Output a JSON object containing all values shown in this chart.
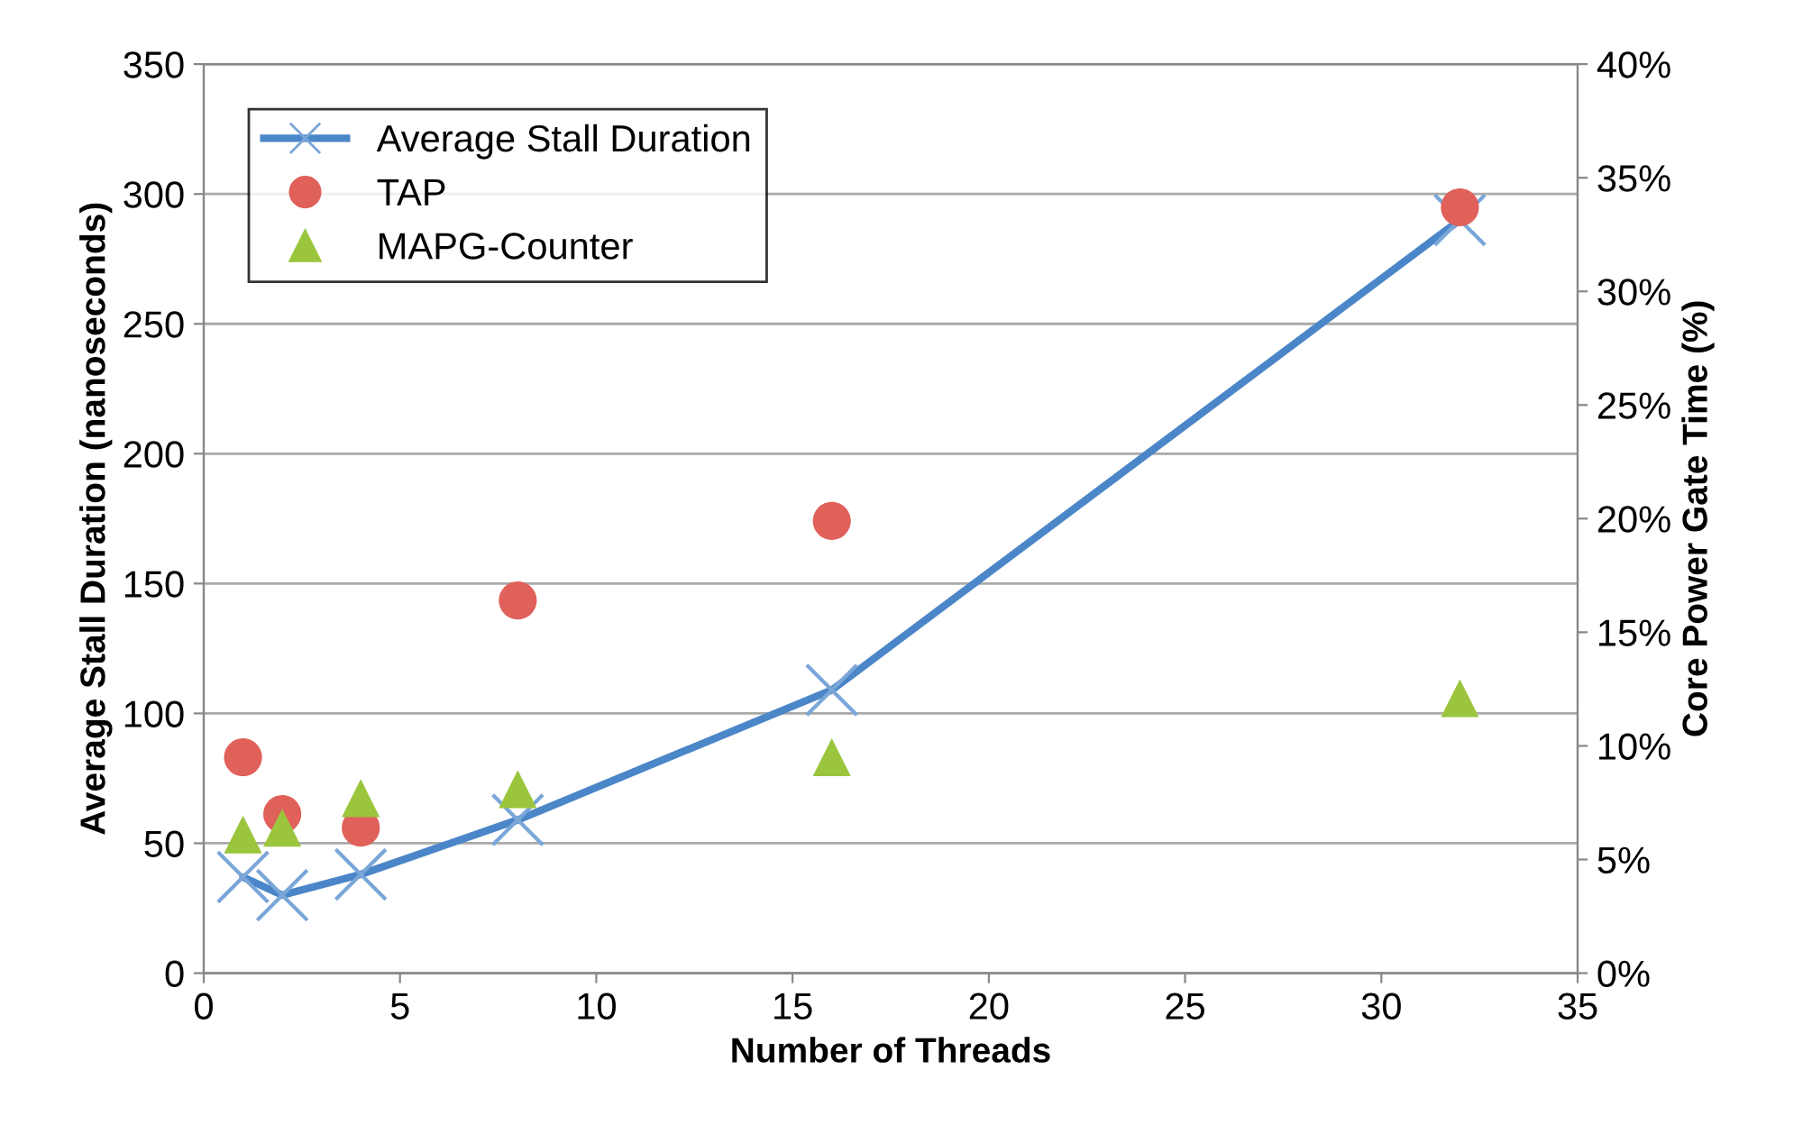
{
  "chart_data": {
    "type": "scatter",
    "xlabel": "Number of Threads",
    "ylabel": "Average Stall Duration (nanoseconds)",
    "y2label": "Core Power Gate Time (%)",
    "xlim": [
      0,
      35
    ],
    "xticks": [
      0,
      5,
      10,
      15,
      20,
      25,
      30,
      35
    ],
    "ylim": [
      0,
      350
    ],
    "yticks": [
      0,
      50,
      100,
      150,
      200,
      250,
      300,
      350
    ],
    "y2lim": [
      0,
      40
    ],
    "y2ticks": [
      {
        "value": 0,
        "label": "0%"
      },
      {
        "value": 5,
        "label": "5%"
      },
      {
        "value": 10,
        "label": "10%"
      },
      {
        "value": 15,
        "label": "15%"
      },
      {
        "value": 20,
        "label": "20%"
      },
      {
        "value": 25,
        "label": "25%"
      },
      {
        "value": 30,
        "label": "30%"
      },
      {
        "value": 35,
        "label": "35%"
      },
      {
        "value": 40,
        "label": "40%"
      }
    ],
    "grid": "y",
    "legend": "top left",
    "series": [
      {
        "name": "Average Stall Duration",
        "type": "line",
        "marker": "cross",
        "color": "#4a86c8",
        "x": [
          1,
          2,
          4,
          8,
          16,
          32
        ],
        "values": [
          37,
          30,
          38,
          59,
          109,
          290
        ]
      },
      {
        "name": "TAP",
        "marker": "circle",
        "color": "#e0605a",
        "axis": "y2",
        "x": [
          1,
          2,
          4,
          8,
          16,
          32
        ],
        "values": [
          9.5,
          7.0,
          6.4,
          16.4,
          19.9,
          33.7
        ]
      },
      {
        "name": "MAPG-Counter",
        "marker": "triangle",
        "color": "#9bc53d",
        "axis": "y2",
        "x": [
          1,
          2,
          4,
          8,
          16,
          32
        ],
        "values": [
          6.1,
          6.4,
          7.7,
          8.1,
          9.5,
          12.1
        ]
      }
    ]
  }
}
